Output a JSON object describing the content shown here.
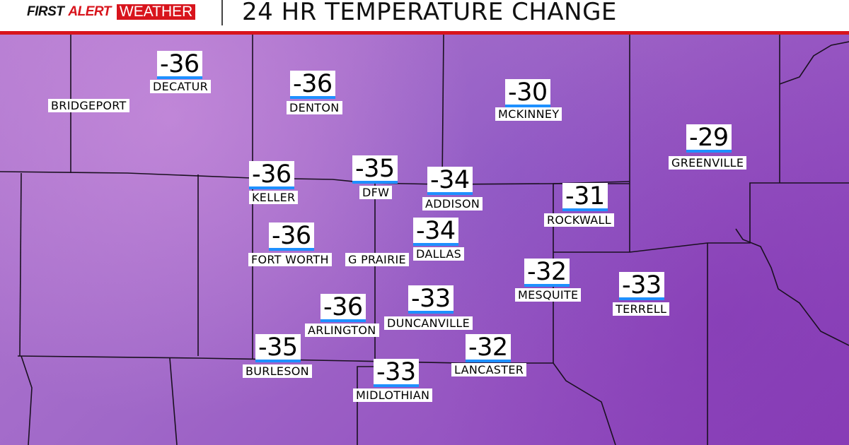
{
  "header": {
    "logo": {
      "first": "FIRST",
      "alert": "ALERT",
      "weather": "WEATHER"
    },
    "title": "24 HR TEMPERATURE CHANGE"
  },
  "colors": {
    "brand_red": "#d8141c",
    "value_underline": "#1e90ff",
    "map_fill": "#a068c8"
  },
  "stations": [
    {
      "name": "DECATUR",
      "value": "-36"
    },
    {
      "name": "BRIDGEPORT",
      "value": null
    },
    {
      "name": "DENTON",
      "value": "-36"
    },
    {
      "name": "MCKINNEY",
      "value": "-30"
    },
    {
      "name": "GREENVILLE",
      "value": "-29"
    },
    {
      "name": "KELLER",
      "value": "-36"
    },
    {
      "name": "DFW",
      "value": "-35"
    },
    {
      "name": "ADDISON",
      "value": "-34"
    },
    {
      "name": "ROCKWALL",
      "value": "-31"
    },
    {
      "name": "FORT WORTH",
      "value": "-36"
    },
    {
      "name": "G PRAIRIE",
      "value": null
    },
    {
      "name": "DALLAS",
      "value": "-34"
    },
    {
      "name": "MESQUITE",
      "value": "-32"
    },
    {
      "name": "TERRELL",
      "value": "-33"
    },
    {
      "name": "ARLINGTON",
      "value": "-36"
    },
    {
      "name": "DUNCANVILLE",
      "value": "-33"
    },
    {
      "name": "BURLESON",
      "value": "-35"
    },
    {
      "name": "LANCASTER",
      "value": "-32"
    },
    {
      "name": "MIDLOTHIAN",
      "value": "-33"
    }
  ]
}
